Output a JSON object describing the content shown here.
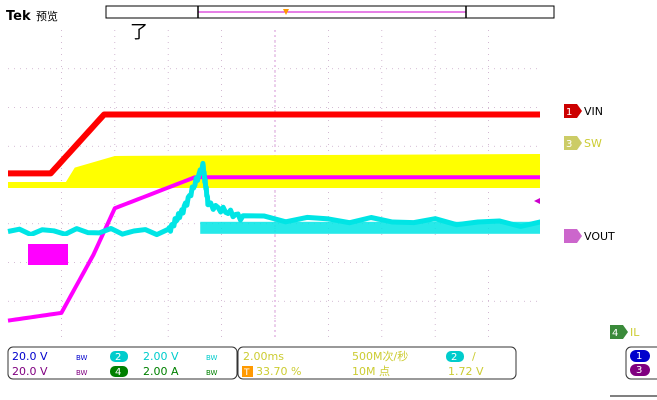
{
  "header": {
    "brand": "Tek",
    "mode": "预览",
    "cursor_glyph": "了"
  },
  "channels": {
    "ch1": {
      "marker": "1",
      "name": "VIN",
      "color": "#ff0000"
    },
    "ch3": {
      "marker": "3",
      "name": "SW",
      "color": "#ffff00"
    },
    "ch2": {
      "marker": "2",
      "name": "VOUT",
      "color": "#ff00ff"
    },
    "ch4": {
      "marker": "4",
      "name": "IL",
      "color": "#00e5e5"
    }
  },
  "readouts": {
    "row1": {
      "scale_a": "20.0 V",
      "bw_a": "BW",
      "ch_b": "2",
      "scale_b": "2.00 V",
      "bw_b": "BW"
    },
    "row2": {
      "scale_a": "20.0 V",
      "bw_a": "BW",
      "ch_b": "4",
      "scale_b": "2.00 A",
      "bw_b": "BW"
    },
    "timebase": {
      "time_div": "2.00ms",
      "sample_rate": "500M次/秒",
      "trig_ch": "2",
      "trig_slope": "/",
      "trig_pos_icon": "T",
      "trig_pos": "33.70 %",
      "record_len": "10M 点",
      "trig_level": "1.72 V"
    },
    "right_ch": [
      "1",
      "3"
    ]
  },
  "colors": {
    "ch1": "#ff0000",
    "ch2": "#ff00ff",
    "ch3": "#ffff00",
    "ch4": "#00e5e5",
    "grid": "#c8a8c8",
    "trigger": "#ff9900",
    "ch4_badge": "#008000",
    "ch1_badge": "#0000cc",
    "ch3_badge": "#800080"
  },
  "chart_data": {
    "type": "line",
    "title": "",
    "xlabel": "",
    "ylabel": "",
    "grid": true,
    "x_divisions": 10,
    "y_divisions": 8,
    "series": [
      {
        "name": "VIN",
        "x": [
          0,
          0.8,
          1.8,
          10
        ],
        "values": [
          0.3,
          0.3,
          1.82,
          1.82
        ]
      },
      {
        "name": "SW",
        "x": [
          0,
          1.05,
          1.25,
          2.0,
          10
        ],
        "values": [
          0.0,
          0.0,
          0.45,
          0.75,
          0.8
        ]
      },
      {
        "name": "VOUT",
        "x": [
          0,
          1.0,
          1.6,
          2.0,
          3.5,
          10
        ],
        "values": [
          -3.5,
          -3.3,
          -1.8,
          -0.6,
          0.2,
          0.2
        ]
      },
      {
        "name": "IL",
        "x": [
          0,
          3.0,
          3.3,
          3.65,
          3.75,
          4.4,
          10
        ],
        "values": [
          -1.2,
          -1.2,
          -0.6,
          0.5,
          -0.5,
          -0.85,
          -1.0
        ]
      }
    ]
  }
}
